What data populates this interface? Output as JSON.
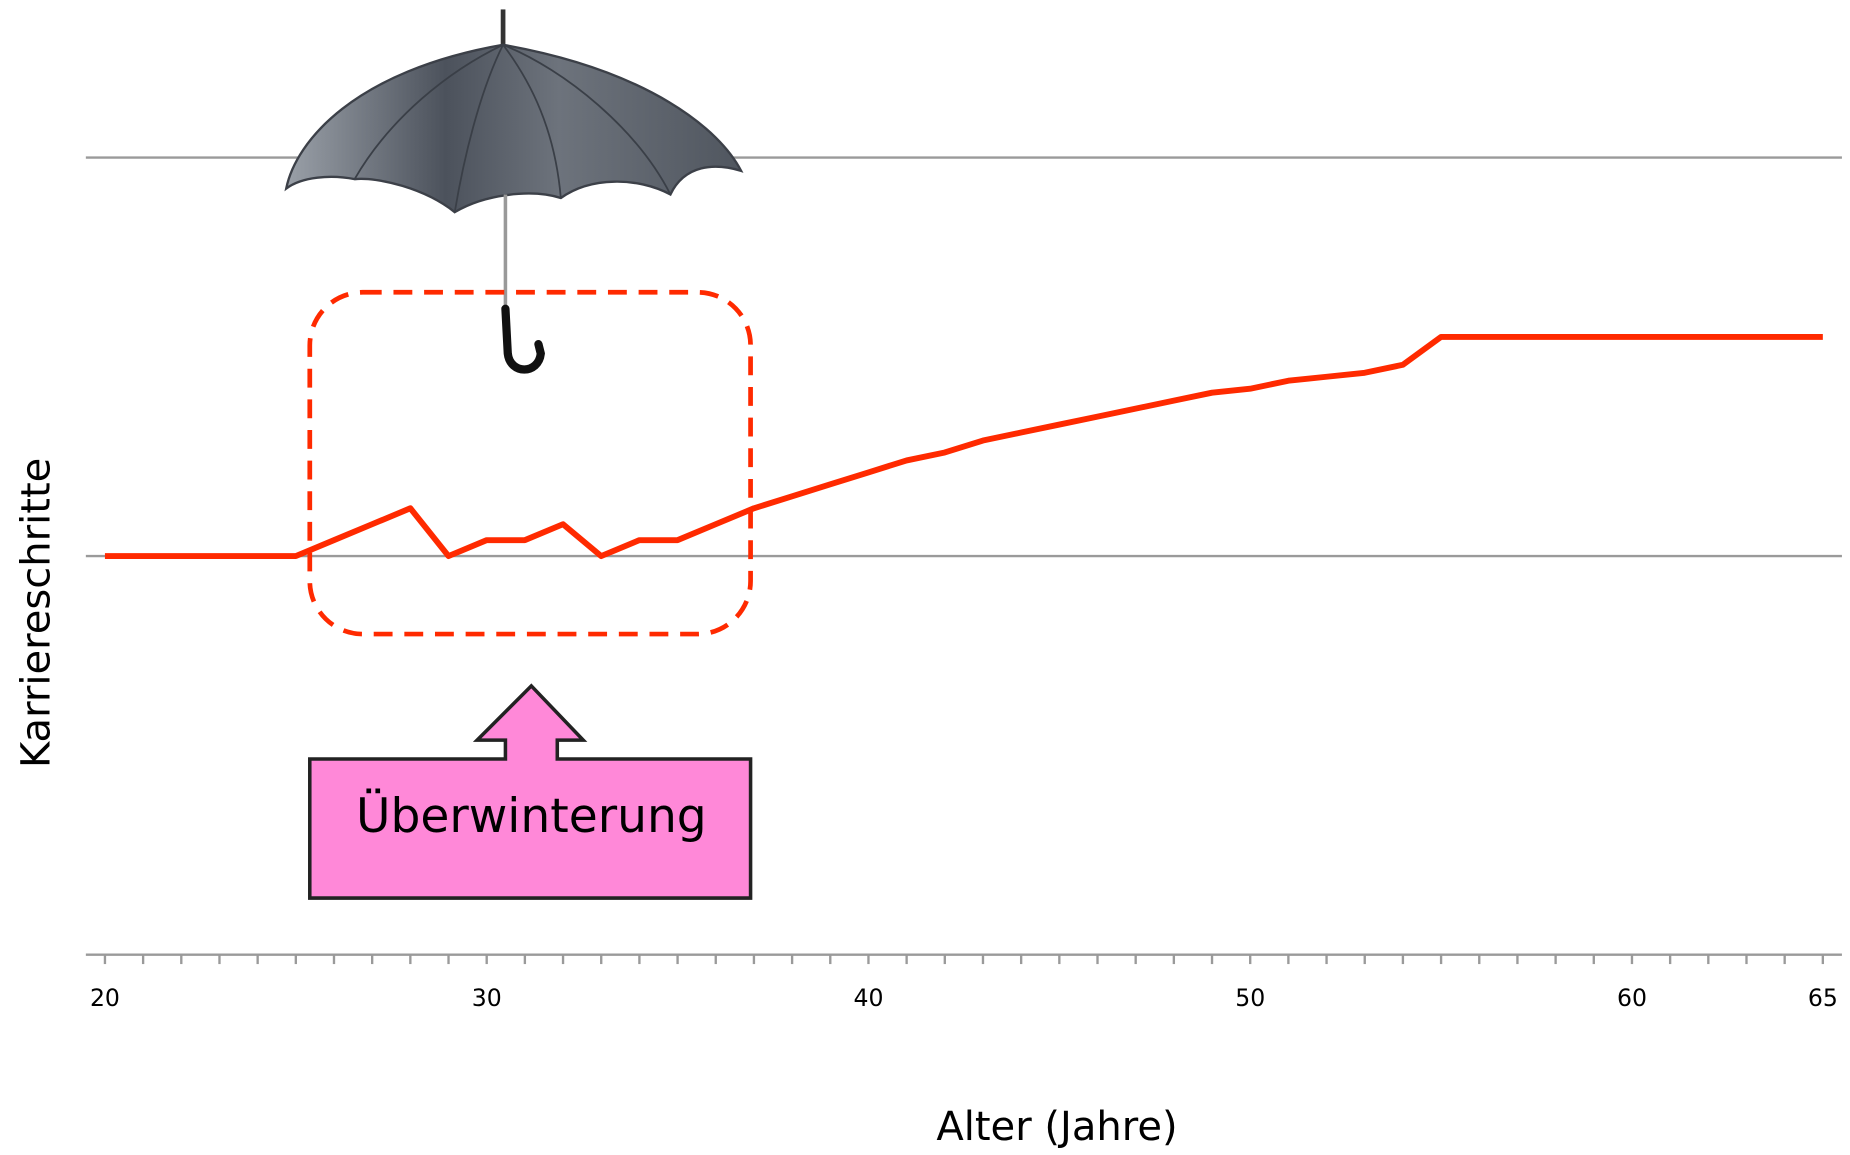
{
  "chart_data": {
    "type": "line",
    "x": [
      20,
      21,
      22,
      23,
      24,
      25,
      26,
      27,
      28,
      29,
      30,
      31,
      32,
      33,
      34,
      35,
      36,
      37,
      38,
      39,
      40,
      41,
      42,
      43,
      44,
      45,
      46,
      47,
      48,
      49,
      50,
      51,
      52,
      53,
      54,
      55,
      56,
      57,
      58,
      59,
      60,
      61,
      62,
      63,
      64,
      65
    ],
    "values": [
      1.0,
      1.0,
      1.0,
      1.0,
      1.0,
      1.0,
      1.04,
      1.08,
      1.12,
      1.0,
      1.04,
      1.04,
      1.08,
      1.0,
      1.04,
      1.04,
      1.08,
      1.12,
      1.15,
      1.18,
      1.21,
      1.24,
      1.26,
      1.29,
      1.31,
      1.33,
      1.35,
      1.37,
      1.39,
      1.41,
      1.42,
      1.44,
      1.45,
      1.46,
      1.48,
      1.55,
      1.55,
      1.55,
      1.55,
      1.55,
      1.55,
      1.55,
      1.55,
      1.55,
      1.55,
      1.55
    ],
    "color": "#ff2a00",
    "xlim": [
      19.5,
      65.5
    ],
    "xticks": [
      20,
      30,
      40,
      50,
      60,
      65
    ],
    "ylim": [
      0,
      2.07
    ],
    "yticks": [
      0,
      1,
      2
    ],
    "grid": true,
    "ylabel": "Karriereschritte",
    "xlabel": "Alter (Jahre)",
    "annotation": "Überwinterung"
  }
}
